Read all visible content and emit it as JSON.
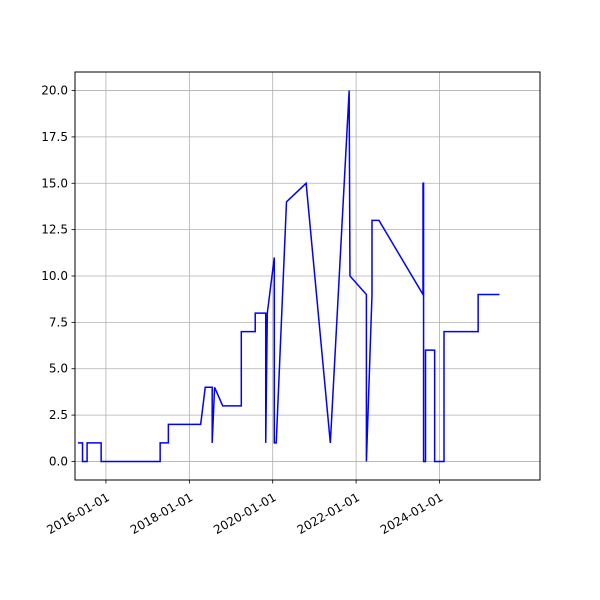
{
  "chart_data": {
    "type": "line",
    "title": "",
    "xlabel": "",
    "ylabel": "",
    "grid": true,
    "line_color": "#0000ff",
    "x_ticks": [
      "2016-01-01",
      "2018-01-01",
      "2020-01-01",
      "2022-01-01",
      "2024-01-01"
    ],
    "y_ticks": [
      "0.0",
      "2.5",
      "5.0",
      "7.5",
      "10.0",
      "12.5",
      "15.0",
      "17.5",
      "20.0"
    ],
    "xlim": [
      "2015-04-05",
      "2026-05-31"
    ],
    "ylim": [
      -1.0,
      21.0
    ],
    "series": [
      {
        "x": [
          "2015-05-01",
          "2015-06-10",
          "2015-06-10",
          "2015-07-20",
          "2015-07-20",
          "2015-11-20",
          "2015-11-20",
          "2017-04-20",
          "2017-04-20",
          "2017-07-01",
          "2017-07-01",
          "2018-04-10",
          "2018-05-20",
          "2018-07-20",
          "2018-07-20",
          "2018-08-10",
          "2018-08-10",
          "2018-10-20",
          "2018-10-20",
          "2019-04-01",
          "2019-04-01",
          "2019-08-01",
          "2019-08-01",
          "2019-11-01",
          "2019-11-01",
          "2019-11-15",
          "2019-11-15",
          "2020-01-15",
          "2020-01-15",
          "2020-02-01",
          "2020-02-01",
          "2020-05-01",
          "2020-05-01",
          "2020-10-20",
          "2020-10-20",
          "2021-05-20",
          "2021-05-20",
          "2021-11-01",
          "2021-11-01",
          "2021-11-08",
          "2021-11-08",
          "2022-04-01",
          "2022-04-01",
          "2022-05-20",
          "2022-05-20",
          "2022-07-20",
          "2022-07-20",
          "2023-08-10",
          "2023-08-10",
          "2023-08-15",
          "2023-08-15",
          "2023-09-01",
          "2023-09-01",
          "2023-11-20",
          "2023-11-20",
          "2024-02-10",
          "2024-02-10",
          "2024-12-05",
          "2024-12-05",
          "2025-04-01",
          "2025-04-01",
          "2025-06-10"
        ],
        "y": [
          1,
          1,
          0,
          0,
          1,
          1,
          0,
          0,
          1,
          1,
          2,
          2,
          4,
          4,
          1,
          4,
          4,
          3,
          3,
          3,
          7,
          7,
          8,
          8,
          1,
          8,
          8,
          11,
          1,
          1,
          1,
          14,
          14,
          15,
          15,
          1,
          1,
          20,
          20,
          10,
          10,
          9,
          0,
          9,
          13,
          13,
          13,
          9,
          15,
          15,
          0,
          0,
          6,
          6,
          0,
          0,
          7,
          7,
          9,
          9,
          9,
          9
        ]
      }
    ]
  }
}
